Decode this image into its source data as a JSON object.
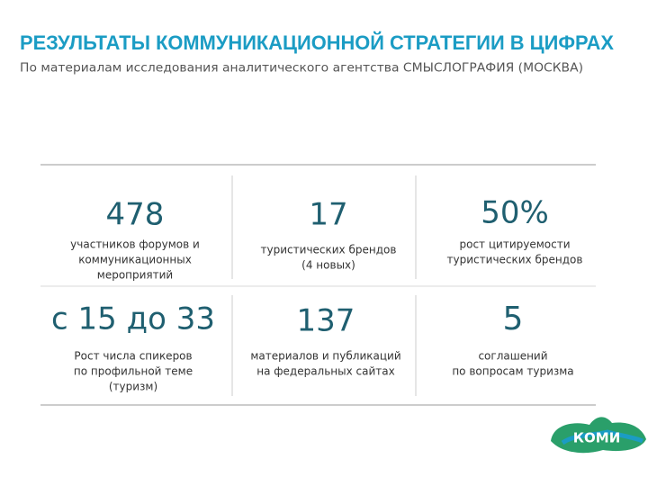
{
  "header": {
    "title": "РЕЗУЛЬТАТЫ КОММУНИКАЦИОННОЙ СТРАТЕГИИ В ЦИФРАХ",
    "subtitle": "По материалам исследования аналитического агентства СМЫСЛОГРАФИЯ (МОСКВА)"
  },
  "cells": [
    {
      "value": "478",
      "lines": [
        "участников форумов и",
        "коммуникационных",
        "мероприятий"
      ]
    },
    {
      "value": "17",
      "lines": [
        "туристических брендов",
        "(4 новых)"
      ]
    },
    {
      "value": "50%",
      "lines": [
        "рост цитируемости",
        "туристических брендов"
      ]
    },
    {
      "value": "с 15 до 33",
      "lines": [
        "Рост числа спикеров",
        "по профильной теме",
        "(туризм)"
      ]
    },
    {
      "value": "137",
      "lines": [
        "материалов и публикаций",
        "на федеральных сайтах"
      ]
    },
    {
      "value": "5",
      "lines": [
        "соглашений",
        "по вопросам туризма"
      ]
    }
  ],
  "logo": {
    "text": "КОМИ"
  }
}
